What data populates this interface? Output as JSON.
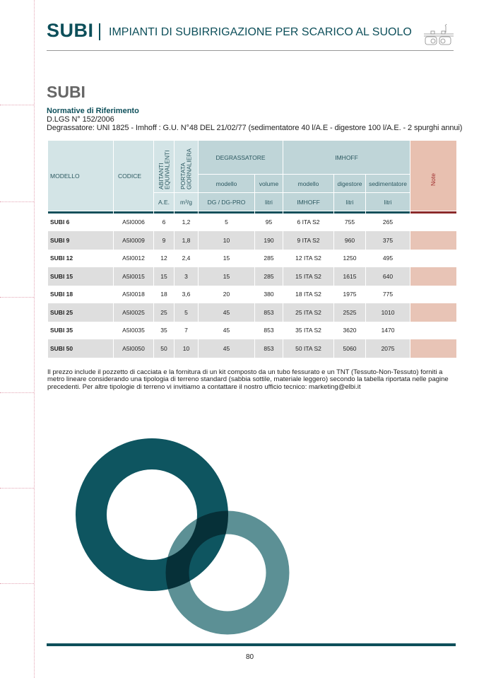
{
  "header": {
    "brand": "SUBI",
    "subtitle": "IMPIANTI DI SUBIRRIGAZIONE PER SCARICO AL SUOLO",
    "icon": "tank-icon"
  },
  "title": "SUBI",
  "norms": {
    "heading": "Normative di Riferimento",
    "lines": [
      "D.LGS N° 152/2006",
      "Degrassatore: UNI 1825 - Imhoff : G.U. N°48 DEL 21/02/77  (sedimentatore 40 l/A.E - digestore 100 l/A.E. - 2 spurghi annui)"
    ]
  },
  "table": {
    "headers": {
      "modello": "MODELLO",
      "codice": "CODICE",
      "abitanti": "ABITANTI EQUIVALENTI",
      "portata": "PORTATA GIORNALIERA",
      "degrassatore": "DEGRASSATORE",
      "imhoff": "IMHOFF",
      "note": "Note",
      "sub": [
        "modello",
        "volume",
        "modello",
        "digestore",
        "sedimentatore"
      ],
      "units": [
        "A.E.",
        "m³/g",
        "DG / DG-PRO",
        "litri",
        "IMHOFF",
        "litri",
        "litri"
      ]
    },
    "rows": [
      [
        "SUBI 6",
        "A5I0006",
        "6",
        "1,2",
        "5",
        "95",
        "6 ITA S2",
        "755",
        "265"
      ],
      [
        "SUBI 9",
        "A5I0009",
        "9",
        "1,8",
        "10",
        "190",
        "9 ITA S2",
        "960",
        "375"
      ],
      [
        "SUBI 12",
        "A5I0012",
        "12",
        "2,4",
        "15",
        "285",
        "12 ITA S2",
        "1250",
        "495"
      ],
      [
        "SUBI 15",
        "A5I0015",
        "15",
        "3",
        "15",
        "285",
        "15 ITA S2",
        "1615",
        "640"
      ],
      [
        "SUBI 18",
        "A5I0018",
        "18",
        "3,6",
        "20",
        "380",
        "18 ITA S2",
        "1975",
        "775"
      ],
      [
        "SUBI 25",
        "A5I0025",
        "25",
        "5",
        "45",
        "853",
        "25 ITA S2",
        "2525",
        "1010"
      ],
      [
        "SUBI 35",
        "A5I0035",
        "35",
        "7",
        "45",
        "853",
        "35 ITA S2",
        "3620",
        "1470"
      ],
      [
        "SUBI 50",
        "A5I0050",
        "50",
        "10",
        "45",
        "853",
        "50 ITA S2",
        "5060",
        "2075"
      ]
    ]
  },
  "footnote": "Il prezzo include il pozzetto di cacciata e la fornitura di un kit composto da un tubo fessurato e un TNT (Tessuto-Non-Tessuto) forniti a metro lineare considerando una tipologia  di terreno standard (sabbia sottile, materiale leggero) secondo la tabella riportata nelle pagine precedenti. Per altre tipologie di terreno vi invitiamo a contattare il nostro ufficio tecnico: marketing@elbi.it",
  "page_number": "80",
  "colors": {
    "brand": "#0d4f5a",
    "ring_dark": "#0e5560",
    "ring_light": "#3f7d82",
    "note": "#e8c0b0"
  }
}
